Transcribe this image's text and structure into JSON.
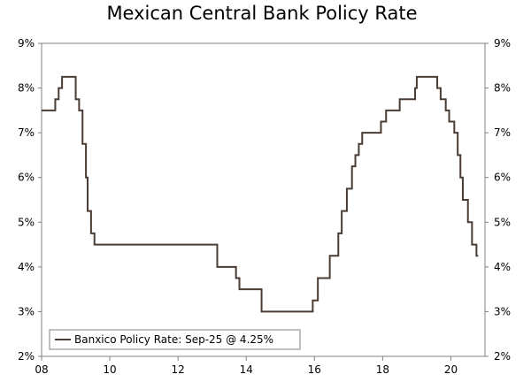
{
  "chart_data": {
    "type": "line",
    "title": "Mexican Central Bank Policy Rate",
    "xlabel": "",
    "ylabel": "",
    "xlim": [
      2008.0,
      2021.0
    ],
    "ylim": [
      2,
      9
    ],
    "x_ticks": [
      {
        "value": 2008,
        "label": "08"
      },
      {
        "value": 2010,
        "label": "10"
      },
      {
        "value": 2012,
        "label": "12"
      },
      {
        "value": 2014,
        "label": "14"
      },
      {
        "value": 2016,
        "label": "16"
      },
      {
        "value": 2018,
        "label": "18"
      },
      {
        "value": 2020,
        "label": "20"
      }
    ],
    "y_ticks": [
      {
        "value": 2,
        "label": "2%"
      },
      {
        "value": 3,
        "label": "3%"
      },
      {
        "value": 4,
        "label": "4%"
      },
      {
        "value": 5,
        "label": "5%"
      },
      {
        "value": 6,
        "label": "6%"
      },
      {
        "value": 7,
        "label": "7%"
      },
      {
        "value": 8,
        "label": "8%"
      },
      {
        "value": 9,
        "label": "9%"
      }
    ],
    "grid": false,
    "legend_position": "bottom-left",
    "line_color": "#4a3c32",
    "series": [
      {
        "name": "Banxico Policy Rate: Sep-25 @ 4.25%",
        "step": true,
        "points": [
          [
            2008.0,
            7.5
          ],
          [
            2008.4,
            7.75
          ],
          [
            2008.5,
            8.0
          ],
          [
            2008.6,
            8.25
          ],
          [
            2009.0,
            7.75
          ],
          [
            2009.1,
            7.5
          ],
          [
            2009.2,
            6.75
          ],
          [
            2009.3,
            6.0
          ],
          [
            2009.35,
            5.25
          ],
          [
            2009.45,
            4.75
          ],
          [
            2009.55,
            4.5
          ],
          [
            2013.15,
            4.0
          ],
          [
            2013.7,
            3.75
          ],
          [
            2013.8,
            3.5
          ],
          [
            2014.45,
            3.0
          ],
          [
            2015.95,
            3.25
          ],
          [
            2016.1,
            3.75
          ],
          [
            2016.45,
            4.25
          ],
          [
            2016.7,
            4.75
          ],
          [
            2016.8,
            5.25
          ],
          [
            2016.95,
            5.75
          ],
          [
            2017.1,
            6.25
          ],
          [
            2017.2,
            6.5
          ],
          [
            2017.3,
            6.75
          ],
          [
            2017.4,
            7.0
          ],
          [
            2017.95,
            7.25
          ],
          [
            2018.1,
            7.5
          ],
          [
            2018.5,
            7.75
          ],
          [
            2018.95,
            8.0
          ],
          [
            2019.0,
            8.25
          ],
          [
            2019.6,
            8.0
          ],
          [
            2019.7,
            7.75
          ],
          [
            2019.85,
            7.5
          ],
          [
            2019.95,
            7.25
          ],
          [
            2020.1,
            7.0
          ],
          [
            2020.2,
            6.5
          ],
          [
            2020.28,
            6.0
          ],
          [
            2020.35,
            5.5
          ],
          [
            2020.5,
            5.0
          ],
          [
            2020.62,
            4.5
          ],
          [
            2020.75,
            4.25
          ],
          [
            2020.8,
            4.25
          ]
        ]
      }
    ]
  }
}
